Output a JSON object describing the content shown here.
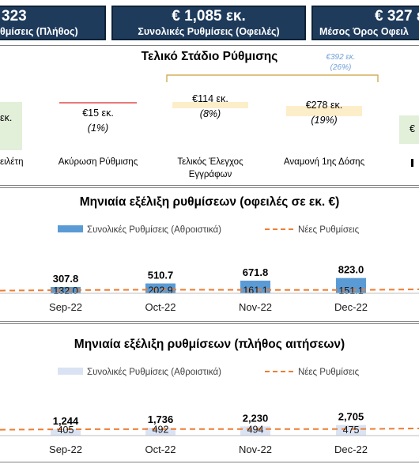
{
  "kpis": [
    {
      "value": "323",
      "label": "θμίσεις (Πλήθος)"
    },
    {
      "value": "€ 1,085 εκ.",
      "label": "Συνολικές Ρυθμίσεις (Οφειλές)"
    },
    {
      "value": "€ 327 ε",
      "label": "Μέσος Όρος Οφειλ"
    }
  ],
  "stages": {
    "title": "Τελικό Στάδιο Ρύθμισης",
    "bracket_note": {
      "amount": "€392 εκ.",
      "pct": "(26%)"
    },
    "items": [
      {
        "amount": "εκ.",
        "pct": "",
        "label": "ειλέτη"
      },
      {
        "amount": "€15 εκ.",
        "pct": "(1%)",
        "label": "Ακύρωση Ρύθμισης"
      },
      {
        "amount": "€114 εκ.",
        "pct": "(8%)",
        "label": "Τελικός Έλεγχος Εγγράφων"
      },
      {
        "amount": "€278 εκ.",
        "pct": "(19%)",
        "label": "Αναμονή 1ης Δόσης"
      },
      {
        "amount": "€",
        "pct": "",
        "label": ""
      }
    ],
    "colors": {
      "green": "#e2efd9",
      "red": "#e8787a",
      "yellow": "#fdeeca",
      "bracket": "#c9a13b",
      "note": "#6f9fd8"
    }
  },
  "chart_data": [
    {
      "type": "bar",
      "title": "Μηνιαία εξέλιξη ρυθμίσεων (οφειλές σε εκ. €)",
      "categories": [
        "Sep-22",
        "Oct-22",
        "Nov-22",
        "Dec-22"
      ],
      "series": [
        {
          "name": "Συνολικές Ρυθμίσεις (Αθροιστικά)",
          "kind": "bar",
          "color": "#5b9bd5",
          "values": [
            307.8,
            510.7,
            671.8,
            823.0
          ],
          "labels": [
            "307.8",
            "510.7",
            "671.8",
            "823.0"
          ]
        },
        {
          "name": "Νέες Ρυθμίσεις",
          "kind": "line",
          "style": "dashed",
          "color": "#ed7d31",
          "values": [
            132.0,
            202.9,
            161.1,
            151.1
          ],
          "labels": [
            "132.0",
            "202.9",
            "161.1",
            "151.1"
          ]
        }
      ],
      "legend_position": "top"
    },
    {
      "type": "bar",
      "title": "Μηνιαία εξέλιξη ρυθμίσεων (πλήθος αιτήσεων)",
      "categories": [
        "Sep-22",
        "Oct-22",
        "Nov-22",
        "Dec-22"
      ],
      "series": [
        {
          "name": "Συνολικές Ρυθμίσεις (Αθροιστικά)",
          "kind": "bar",
          "color": "#dae3f3",
          "values": [
            1244,
            1736,
            2230,
            2705
          ],
          "labels": [
            "1,244",
            "1,736",
            "2,230",
            "2,705"
          ]
        },
        {
          "name": "Νέες Ρυθμίσεις",
          "kind": "line",
          "style": "dashed",
          "color": "#ed7d31",
          "values": [
            405,
            492,
            494,
            475
          ],
          "labels": [
            "405",
            "492",
            "494",
            "475"
          ]
        }
      ],
      "legend_position": "top"
    }
  ]
}
